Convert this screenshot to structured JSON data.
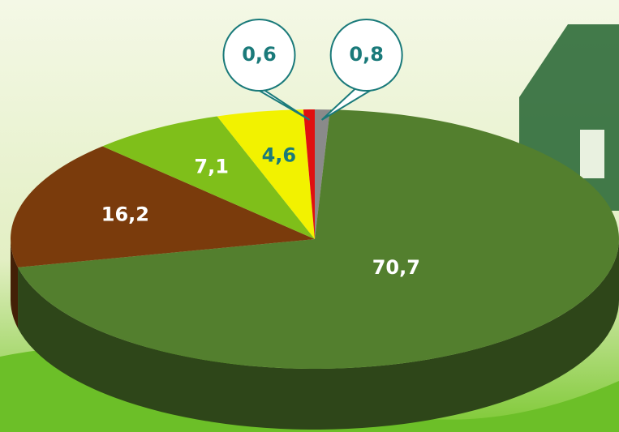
{
  "chart_data": {
    "type": "pie3d",
    "values": [
      0.8,
      70.7,
      16.2,
      7.1,
      4.6,
      0.6
    ],
    "value_labels": [
      "0,8",
      "70,7",
      "16,2",
      "7,1",
      "4,6",
      "0,6"
    ],
    "colors": [
      "#8a8a8a",
      "#537f2e",
      "#7a3b0c",
      "#7fbf1a",
      "#f2f200",
      "#e01010"
    ],
    "label_colors": [
      "#1a7a7a",
      "#ffffff",
      "#ffffff",
      "#ffffff",
      "#1a7a7a",
      "#1a7a7a"
    ]
  }
}
